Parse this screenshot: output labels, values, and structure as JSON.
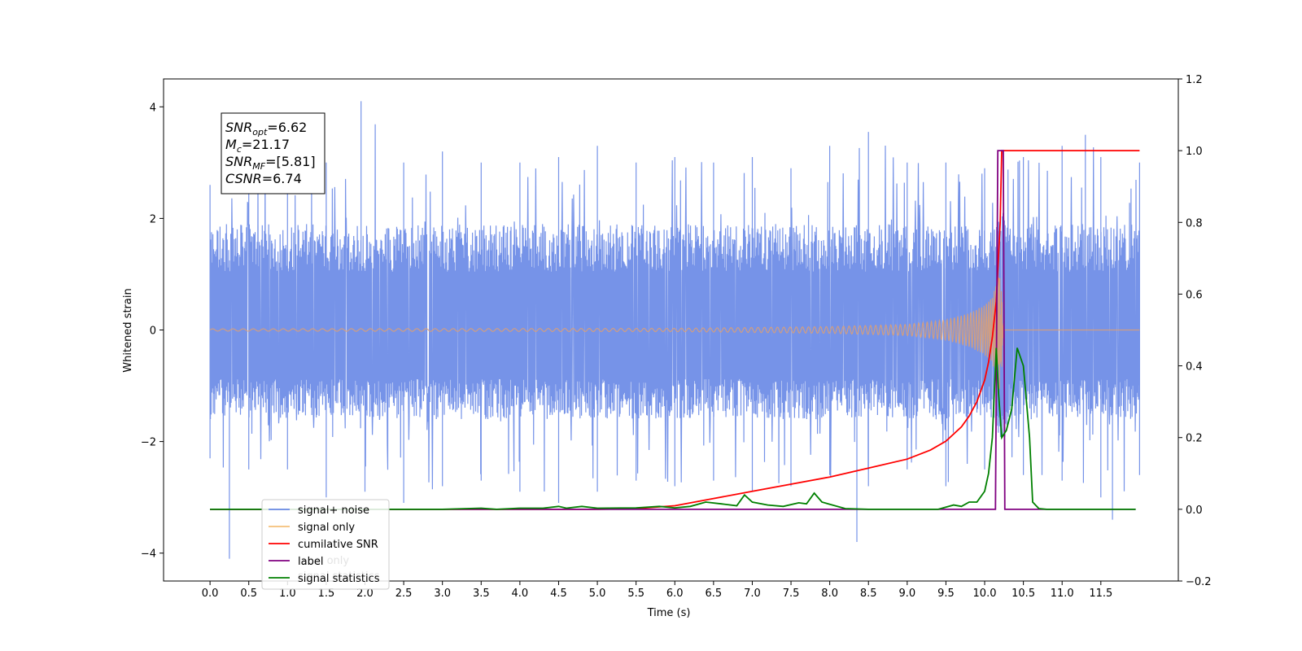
{
  "chart_data": {
    "type": "line",
    "xlabel": "Time (s)",
    "ylabel_left": "Whitened strain",
    "ylabel_right": "",
    "xlim": [
      -0.6,
      12.5
    ],
    "ylim_left": [
      -4.5,
      4.5
    ],
    "ylim_right": [
      -0.2,
      1.2
    ],
    "x_ticks": [
      "0.0",
      "0.5",
      "1.0",
      "1.5",
      "2.0",
      "2.5",
      "3.0",
      "3.5",
      "4.0",
      "4.5",
      "5.0",
      "5.5",
      "6.0",
      "6.5",
      "7.0",
      "7.5",
      "8.0",
      "8.5",
      "9.0",
      "9.5",
      "10.0",
      "10.5",
      "11.0",
      "11.5"
    ],
    "y_left_ticks": [
      "−4",
      "−2",
      "0",
      "2",
      "4"
    ],
    "y_right_ticks": [
      "−0.2",
      "0.0",
      "0.2",
      "0.4",
      "0.6",
      "0.8",
      "1.0",
      "1.2"
    ],
    "grid": false,
    "legend_position": "lower-left",
    "annotation": {
      "lines": [
        {
          "sym": "SNR",
          "sub": "opt",
          "value": "=6.62"
        },
        {
          "sym": "M",
          "sub": "c",
          "value": "=21.17"
        },
        {
          "sym": "SNR",
          "sub": "MF",
          "value": "=[5.81]"
        },
        {
          "sym": "CSNR",
          "sub": "",
          "value": "=6.74"
        }
      ]
    },
    "series": [
      {
        "name": "signal+ noise",
        "axis": "left",
        "color": "#6a8ae6",
        "kind": "noise",
        "x_range": [
          0.0,
          12.0
        ],
        "band": [
          -1.6,
          1.9
        ],
        "spikes_max": [
          [
            0.0,
            2.6
          ],
          [
            0.5,
            2.9
          ],
          [
            1.0,
            3.3
          ],
          [
            1.5,
            3.0
          ],
          [
            1.95,
            4.1
          ],
          [
            2.5,
            3.0
          ],
          [
            3.0,
            3.2
          ],
          [
            3.5,
            3.0
          ],
          [
            4.0,
            3.0
          ],
          [
            4.5,
            3.1
          ],
          [
            5.0,
            3.3
          ],
          [
            5.5,
            3.0
          ],
          [
            6.0,
            3.1
          ],
          [
            6.5,
            3.0
          ],
          [
            7.0,
            3.1
          ],
          [
            7.5,
            2.9
          ],
          [
            8.0,
            3.3
          ],
          [
            8.5,
            3.55
          ],
          [
            9.0,
            3.0
          ],
          [
            9.5,
            3.0
          ],
          [
            10.0,
            2.9
          ],
          [
            10.5,
            3.1
          ],
          [
            11.0,
            3.3
          ],
          [
            11.3,
            3.5
          ],
          [
            11.5,
            3.1
          ],
          [
            12.0,
            3.0
          ]
        ],
        "spikes_min": [
          [
            0.0,
            -2.3
          ],
          [
            0.25,
            -4.1
          ],
          [
            0.5,
            -2.5
          ],
          [
            1.0,
            -2.5
          ],
          [
            1.5,
            -3.0
          ],
          [
            2.0,
            -2.9
          ],
          [
            2.5,
            -3.1
          ],
          [
            3.0,
            -2.8
          ],
          [
            3.5,
            -2.7
          ],
          [
            4.0,
            -2.9
          ],
          [
            4.5,
            -3.1
          ],
          [
            5.0,
            -2.9
          ],
          [
            5.5,
            -2.7
          ],
          [
            6.0,
            -2.8
          ],
          [
            6.5,
            -2.7
          ],
          [
            7.0,
            -2.9
          ],
          [
            7.5,
            -2.8
          ],
          [
            8.0,
            -2.6
          ],
          [
            8.35,
            -3.8
          ],
          [
            8.5,
            -2.8
          ],
          [
            9.0,
            -2.5
          ],
          [
            9.5,
            -2.8
          ],
          [
            10.0,
            -2.5
          ],
          [
            10.5,
            -2.6
          ],
          [
            11.0,
            -2.7
          ],
          [
            11.5,
            -3.0
          ],
          [
            11.65,
            -3.4
          ],
          [
            12.0,
            -2.6
          ]
        ]
      },
      {
        "name": "signal only",
        "axis": "left",
        "color": "#f5c07a",
        "kind": "chirp",
        "x_range": [
          0.0,
          12.0
        ],
        "merger_time": 10.2,
        "envelope": [
          [
            0.0,
            0.02
          ],
          [
            6.0,
            0.03
          ],
          [
            8.0,
            0.06
          ],
          [
            9.0,
            0.1
          ],
          [
            9.5,
            0.18
          ],
          [
            9.8,
            0.3
          ],
          [
            10.0,
            0.45
          ],
          [
            10.1,
            0.6
          ],
          [
            10.2,
            1.1
          ],
          [
            10.25,
            0.0
          ],
          [
            12.0,
            0.0
          ]
        ]
      },
      {
        "name": "cumilative SNR",
        "axis": "right",
        "color": "#ff0000",
        "x": [
          0.0,
          5.0,
          5.5,
          6.0,
          6.5,
          7.0,
          7.5,
          8.0,
          8.5,
          9.0,
          9.3,
          9.5,
          9.7,
          9.8,
          9.9,
          10.0,
          10.05,
          10.1,
          10.15,
          10.2,
          10.22,
          12.0
        ],
        "y": [
          0.0,
          0.0,
          0.002,
          0.01,
          0.03,
          0.05,
          0.07,
          0.09,
          0.115,
          0.14,
          0.165,
          0.19,
          0.23,
          0.26,
          0.3,
          0.36,
          0.41,
          0.48,
          0.58,
          0.8,
          1.0,
          1.0
        ]
      },
      {
        "name": "label",
        "axis": "right",
        "color": "#800080",
        "x": [
          0.0,
          10.14,
          10.17,
          10.24,
          10.26,
          11.95
        ],
        "y": [
          0.0,
          0.0,
          1.0,
          1.0,
          0.0,
          0.0
        ]
      },
      {
        "name": "signal statistics",
        "axis": "right",
        "color": "#008000",
        "x": [
          0.0,
          3.0,
          3.5,
          3.7,
          4.0,
          4.3,
          4.5,
          4.6,
          4.8,
          5.0,
          5.5,
          5.8,
          6.0,
          6.2,
          6.4,
          6.6,
          6.8,
          6.9,
          7.0,
          7.2,
          7.4,
          7.6,
          7.7,
          7.8,
          7.9,
          8.2,
          8.5,
          9.0,
          9.4,
          9.6,
          9.7,
          9.8,
          9.9,
          10.0,
          10.05,
          10.1,
          10.15,
          10.18,
          10.22,
          10.28,
          10.35,
          10.42,
          10.5,
          10.58,
          10.62,
          10.7,
          10.8,
          11.95
        ],
        "y": [
          0.0,
          0.0,
          0.003,
          0.0,
          0.003,
          0.003,
          0.008,
          0.003,
          0.008,
          0.003,
          0.004,
          0.008,
          0.004,
          0.008,
          0.02,
          0.015,
          0.01,
          0.04,
          0.02,
          0.012,
          0.008,
          0.018,
          0.015,
          0.045,
          0.02,
          0.002,
          0.0,
          0.0,
          0.0,
          0.012,
          0.008,
          0.02,
          0.02,
          0.05,
          0.1,
          0.2,
          0.45,
          0.32,
          0.2,
          0.22,
          0.28,
          0.45,
          0.4,
          0.2,
          0.02,
          0.002,
          0.0,
          0.0
        ]
      }
    ],
    "legend_entries": [
      {
        "label": "signal+ noise",
        "color": "#6a8ae6"
      },
      {
        "label": "signal only",
        "color": "#f5c07a"
      },
      {
        "label": "cumilative SNR",
        "color": "#ff0000"
      },
      {
        "label": "label",
        "color": "#800080"
      },
      {
        "label": "signal statistics",
        "color": "#008000"
      }
    ],
    "legend_ghost_labels": [
      "label only",
      "signal statistics"
    ]
  }
}
